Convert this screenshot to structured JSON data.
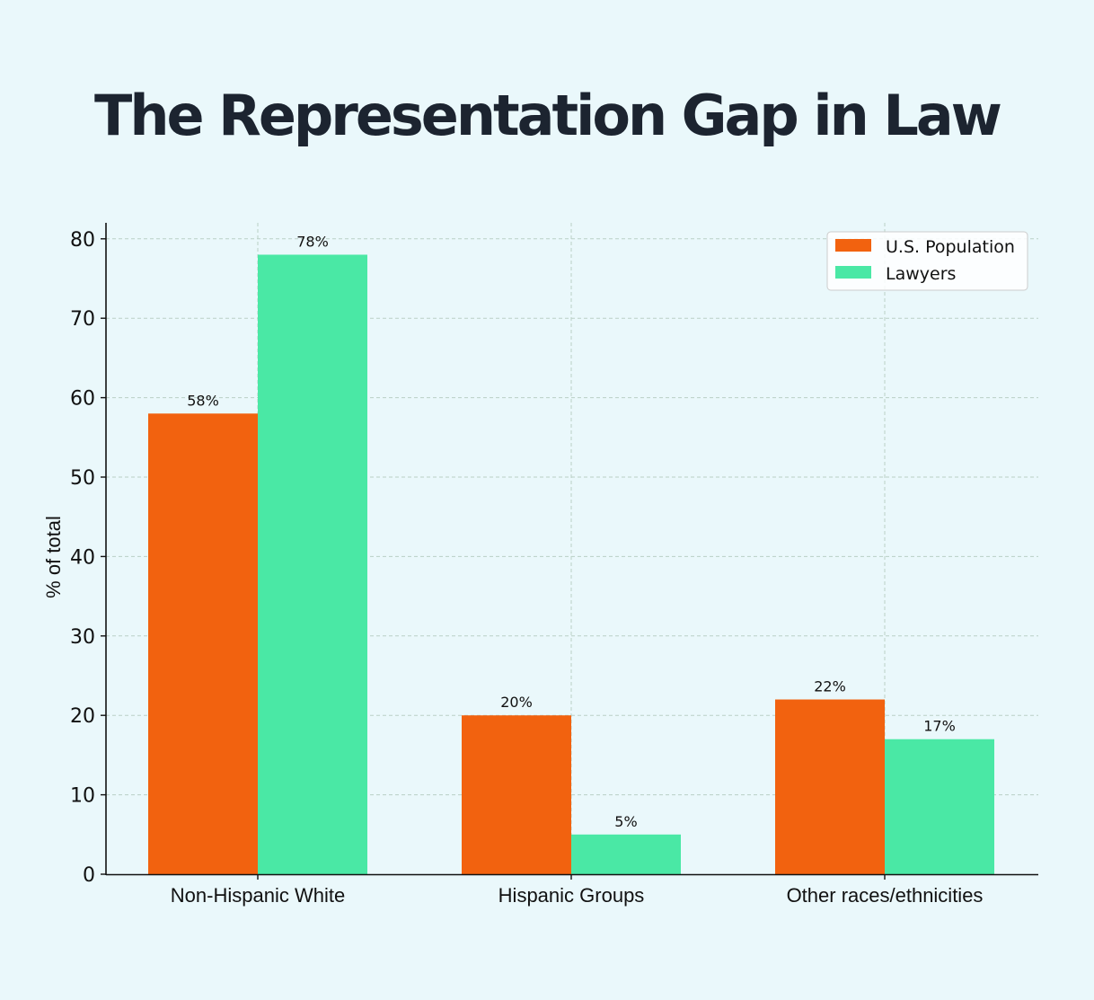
{
  "chart_data": {
    "type": "bar",
    "title": "The Representation Gap in Law",
    "xlabel": "",
    "ylabel": "% of total",
    "ylim": [
      0,
      82
    ],
    "yticks": [
      "0",
      "10",
      "20",
      "30",
      "40",
      "50",
      "60",
      "70",
      "80"
    ],
    "grid": true,
    "legend_position": "top-right",
    "categories": [
      "Non-Hispanic White",
      "Hispanic Groups",
      "Other races/ethnicities"
    ],
    "series": [
      {
        "name": "U.S. Population",
        "color": "#f2620f",
        "values": [
          58,
          20,
          22
        ],
        "labels": [
          "58%",
          "20%",
          "22%"
        ]
      },
      {
        "name": "Lawyers",
        "color": "#4ae8a5",
        "values": [
          78,
          5,
          17
        ],
        "labels": [
          "78%",
          "5%",
          "17%"
        ]
      }
    ]
  }
}
